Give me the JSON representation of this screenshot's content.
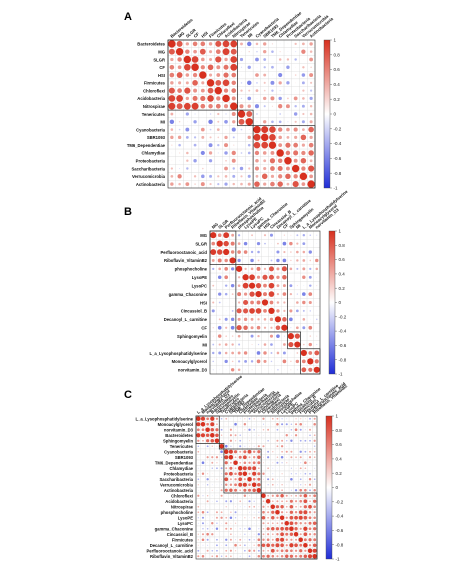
{
  "colorbar": {
    "ticks": [
      "1",
      "0.8",
      "0.6",
      "0.4",
      "0.2",
      "0",
      "-0.2",
      "-0.4",
      "-0.6",
      "-0.8",
      "-1"
    ],
    "colors": {
      "positive": "#d7301f",
      "neutral": "#ffffff",
      "negative": "#1f2dd6",
      "frame": "#333333",
      "grid": "#d8d8d8"
    }
  },
  "chart_data": [
    {
      "panel": "A",
      "type": "heatmap",
      "style": "correlogram-circles-lower-upper",
      "row_labels": [
        "Bacteroidetes",
        "MG",
        "SLGR",
        "CF",
        "HSI",
        "Firmicutes",
        "Chloroflexi",
        "Acidobacteria",
        "Nitrospirae",
        "Tenericutes",
        "MI",
        "Cyanobacteria",
        "SBR1093",
        "TM6_Dependentiae",
        "Chlamydiae",
        "Proteobacteria",
        "Saccharibacteria",
        "Verrucomicrobia",
        "Actinobacteria"
      ],
      "col_labels": [
        "Bacteroidetes",
        "MG",
        "SLGR",
        "CF",
        "HSI",
        "Firmicutes",
        "Chloroflexi",
        "Acidobacteria",
        "Nitrospirae",
        "Tenericutes",
        "MI",
        "Cyanobacteria",
        "SBR1093",
        "TM6_Dependentiae",
        "Chlamydiae",
        "Proteobacteria",
        "Saccharibacteria",
        "Verrucomicrobia",
        "Actinobacteria"
      ],
      "groups": [
        [
          0,
          8
        ],
        [
          9,
          10
        ],
        [
          11,
          18
        ]
      ],
      "range": [
        -1,
        1
      ]
    },
    {
      "panel": "B",
      "type": "heatmap",
      "style": "correlogram-circles-lower-upper",
      "row_labels": [
        "MG",
        "SLGR",
        "Perfluorooctanoic_acid",
        "Riboflavin_VitaminB2",
        "phosphocholine",
        "LysoPE",
        "LysoPC",
        "gamma_Chaconine",
        "HSI",
        "Cincassiol_B",
        "Decanoyl_L_carnitine",
        "CF",
        "Sphingomyelin",
        "MI",
        "L_a_Lysophosphatidylserine",
        "Monoacylglycerol",
        "norvitamin_D3"
      ],
      "col_labels": [
        "MG",
        "SLGR",
        "Perfluorooctanoic_acid",
        "Riboflavin_VitaminB2",
        "phosphocholine",
        "LysoPE",
        "LysoPC",
        "gamma_Chaconine",
        "HSI",
        "Cincassiol_B",
        "Decanoyl_L_carnitine",
        "CF",
        "Sphingomyelin",
        "MI",
        "L_a_Lysophosphatidylserine",
        "Monoacylglycerol",
        "norvitamin_D3"
      ],
      "groups": [
        [
          0,
          3
        ],
        [
          4,
          11
        ],
        [
          12,
          13
        ],
        [
          14,
          16
        ]
      ],
      "range": [
        -1,
        1
      ]
    },
    {
      "panel": "C",
      "type": "heatmap",
      "style": "correlogram-circles-lower-upper",
      "row_labels": [
        "L_a_Lysophosphatidylserine",
        "Monoacylglycerol",
        "norvitamin_D3",
        "Bacteroidetes",
        "Sphingomyelin",
        "Tenericutes",
        "Cyanobacteria",
        "SBR1093",
        "TM6_Dependentiae",
        "Chlamydiae",
        "Proteobacteria",
        "Saccharibacteria",
        "Verrucomicrobia",
        "Actinobacteria",
        "Chloroflexi",
        "Acidobacteria",
        "Nitrospirae",
        "phosphocholine",
        "LysoPE",
        "LysoPC",
        "gamma_Chaconine",
        "Cincassiol_B",
        "Firmicutes",
        "Decanoyl_L_carnitine",
        "Perfluorooctanoic_acid",
        "Riboflavin_VitaminB2"
      ],
      "col_labels": [
        "L_a_Lysophosphatidylserine",
        "Monoacylglycerol",
        "norvitamin_D3",
        "Bacteroidetes",
        "Sphingomyelin",
        "Tenericutes",
        "Cyanobacteria",
        "SBR1093",
        "TM6_Dependentiae",
        "Chlamydiae",
        "Proteobacteria",
        "Saccharibacteria",
        "Verrucomicrobia",
        "Actinobacteria",
        "Chloroflexi",
        "Acidobacteria",
        "Nitrospirae",
        "phosphocholine",
        "LysoPE",
        "LysoPC",
        "gamma_Chaconine",
        "Cincassiol_B",
        "Firmicutes",
        "Decanoyl_L_carnitine",
        "Perfluorooctanoic_acid",
        "Riboflavin_VitaminB2"
      ],
      "groups": [
        [
          0,
          4
        ],
        [
          5,
          5
        ],
        [
          6,
          13
        ],
        [
          14,
          25
        ]
      ],
      "range": [
        -1,
        1
      ]
    }
  ]
}
